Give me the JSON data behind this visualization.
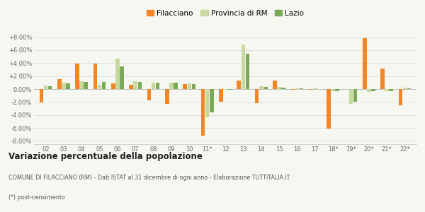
{
  "years": [
    "02",
    "03",
    "04",
    "05",
    "06",
    "07",
    "08",
    "09",
    "10",
    "11*",
    "12",
    "13",
    "14",
    "15",
    "16",
    "17",
    "18*",
    "19*",
    "20*",
    "21*",
    "22*"
  ],
  "filacciano": [
    -2.1,
    1.5,
    3.9,
    3.9,
    0.9,
    0.7,
    -1.7,
    -2.3,
    0.8,
    -7.2,
    -2.0,
    1.3,
    -2.2,
    1.3,
    -0.1,
    -0.1,
    -6.1,
    0.0,
    7.8,
    3.2,
    -2.5
  ],
  "provincia": [
    0.5,
    1.0,
    1.2,
    0.6,
    4.7,
    1.2,
    1.0,
    1.0,
    0.9,
    -4.4,
    -0.1,
    6.9,
    0.4,
    0.3,
    0.1,
    0.1,
    -0.3,
    -2.3,
    -0.4,
    -0.3,
    0.2
  ],
  "lazio": [
    0.4,
    0.9,
    1.1,
    1.1,
    3.5,
    1.1,
    1.0,
    1.0,
    0.8,
    -3.6,
    -0.1,
    5.4,
    0.3,
    0.2,
    0.1,
    0.0,
    -0.3,
    -2.0,
    -0.3,
    -0.3,
    0.1
  ],
  "filacciano_color": "#f28729",
  "provincia_color": "#c8d9a0",
  "lazio_color": "#7aaa58",
  "background_color": "#f7f7f2",
  "grid_color": "#e0e0e0",
  "ylim": [
    -8.5,
    8.5
  ],
  "yticks": [
    -8.0,
    -6.0,
    -4.0,
    -2.0,
    0.0,
    2.0,
    4.0,
    6.0,
    8.0
  ],
  "title_main": "Variazione percentuale della popolazione",
  "subtitle": "COMUNE DI FILACCIANO (RM) - Dati ISTAT al 31 dicembre di ogni anno - Elaborazione TUTTITALIA.IT",
  "footnote": "(*) post-censimento",
  "bar_width": 0.22,
  "bar_gap": 0.24
}
